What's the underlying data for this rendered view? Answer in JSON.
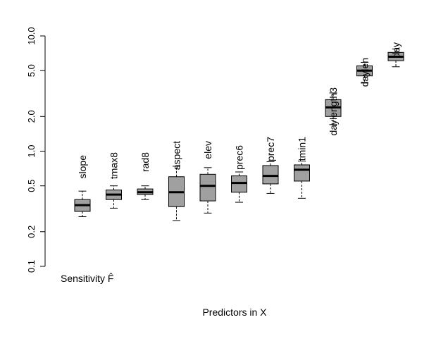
{
  "chart_data": {
    "type": "box",
    "xlabel": "Predictors in X",
    "ylabel": "Sensitivity F̂",
    "y_scale": "log",
    "ylim": [
      0.1,
      10.0
    ],
    "y_ticks": [
      0.1,
      0.2,
      0.5,
      1.0,
      2.0,
      5.0,
      10.0
    ],
    "y_tick_labels": [
      "0.1",
      "0.2",
      "0.5",
      "1.0",
      "2.0",
      "5.0",
      "10.0"
    ],
    "box_fill": "#a0a0a0",
    "grid": false,
    "categories": [
      "slope",
      "tmax8",
      "rad8",
      "aspect",
      "elev",
      "prec6",
      "prec7",
      "tmin1",
      "daylength3",
      "daylen",
      "day"
    ],
    "boxes": [
      {
        "name": "slope",
        "min": 0.27,
        "q1": 0.3,
        "median": 0.34,
        "q3": 0.38,
        "max": 0.45
      },
      {
        "name": "tmax8",
        "min": 0.32,
        "q1": 0.38,
        "median": 0.42,
        "q3": 0.46,
        "max": 0.5
      },
      {
        "name": "rad8",
        "min": 0.38,
        "q1": 0.42,
        "median": 0.44,
        "q3": 0.47,
        "max": 0.5
      },
      {
        "name": "aspect",
        "min": 0.25,
        "q1": 0.33,
        "median": 0.44,
        "q3": 0.6,
        "max": 0.74
      },
      {
        "name": "elev",
        "min": 0.29,
        "q1": 0.37,
        "median": 0.5,
        "q3": 0.63,
        "max": 0.72
      },
      {
        "name": "prec6",
        "min": 0.36,
        "q1": 0.44,
        "median": 0.53,
        "q3": 0.61,
        "max": 0.66
      },
      {
        "name": "prec7",
        "min": 0.43,
        "q1": 0.52,
        "median": 0.61,
        "q3": 0.75,
        "max": 0.81
      },
      {
        "name": "tmin1",
        "min": 0.39,
        "q1": 0.55,
        "median": 0.69,
        "q3": 0.76,
        "max": 0.82
      },
      {
        "name": "daylength3",
        "min": 1.7,
        "q1": 2.0,
        "median": 2.4,
        "q3": 2.8,
        "max": 3.2
      },
      {
        "name": "daylen",
        "min": 3.9,
        "q1": 4.5,
        "median": 5.0,
        "q3": 5.5,
        "max": 5.9
      },
      {
        "name": "day",
        "min": 5.4,
        "q1": 6.1,
        "median": 6.6,
        "q3": 7.2,
        "max": 7.7
      }
    ]
  }
}
